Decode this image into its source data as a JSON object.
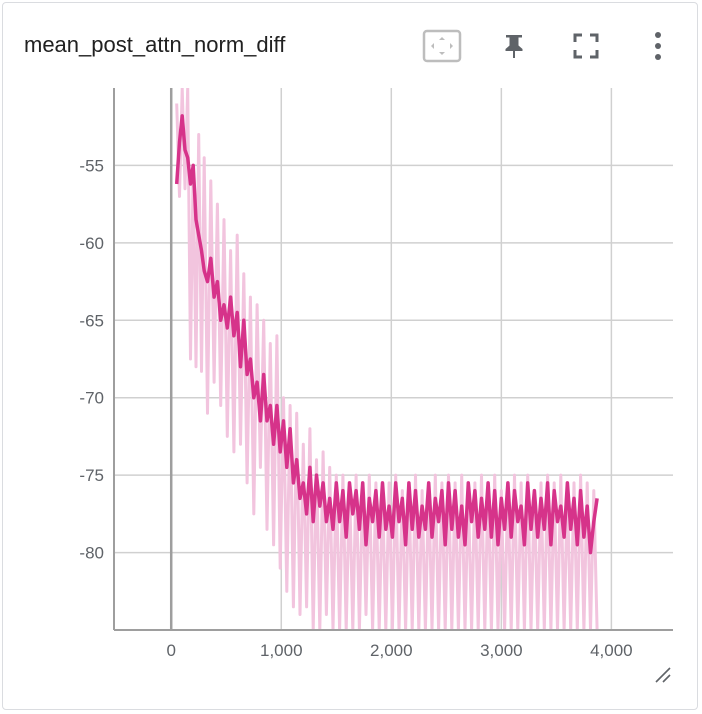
{
  "card": {
    "title": "mean_post_attn_norm_diff",
    "toolbar": [
      {
        "name": "fit-domain-button",
        "icon": "fit-to-data-icon"
      },
      {
        "name": "pin-button",
        "icon": "pin-icon"
      },
      {
        "name": "fullscreen-button",
        "icon": "fullscreen-icon"
      },
      {
        "name": "more-options-button",
        "icon": "more-vert-icon"
      }
    ]
  },
  "chart_data": {
    "type": "line",
    "title": "mean_post_attn_norm_diff",
    "xlabel": "",
    "ylabel": "",
    "xlim": [
      -520,
      4560
    ],
    "ylim": [
      -85,
      -50
    ],
    "x_ticks": [
      "0",
      "1,000",
      "2,000",
      "3,000",
      "4,000"
    ],
    "y_ticks": [
      "-55",
      "-60",
      "-65",
      "-70",
      "-75",
      "-80"
    ],
    "grid": true,
    "colors": {
      "raw": "#f2c4de",
      "smoothed": "#d6338a",
      "axis": "#9e9e9e",
      "grid": "#d0d0d0"
    },
    "series": [
      {
        "role": "raw",
        "x": [
          50,
          75,
          100,
          125,
          150,
          175,
          200,
          225,
          250,
          275,
          300,
          330,
          360,
          390,
          420,
          450,
          480,
          510,
          540,
          570,
          600,
          630,
          660,
          690,
          720,
          750,
          780,
          810,
          840,
          870,
          900,
          930,
          960,
          990,
          1020,
          1050,
          1080,
          1110,
          1140,
          1170,
          1200,
          1230,
          1260,
          1290,
          1320,
          1350,
          1380,
          1410,
          1440,
          1470,
          1500,
          1530,
          1560,
          1590,
          1620,
          1650,
          1680,
          1710,
          1740,
          1770,
          1800,
          1830,
          1860,
          1890,
          1920,
          1950,
          1980,
          2010,
          2040,
          2070,
          2100,
          2130,
          2160,
          2190,
          2220,
          2250,
          2280,
          2310,
          2340,
          2370,
          2400,
          2430,
          2460,
          2490,
          2520,
          2550,
          2580,
          2610,
          2640,
          2670,
          2700,
          2730,
          2760,
          2790,
          2820,
          2850,
          2880,
          2910,
          2940,
          2970,
          3000,
          3030,
          3060,
          3090,
          3120,
          3150,
          3180,
          3210,
          3240,
          3270,
          3300,
          3330,
          3360,
          3390,
          3420,
          3450,
          3480,
          3510,
          3540,
          3570,
          3600,
          3630,
          3660,
          3690,
          3720,
          3750,
          3780,
          3810,
          3840,
          3870
        ],
        "values": [
          -51.0,
          -57.0,
          -50.0,
          -56.5,
          -50.0,
          -67.5,
          -55.0,
          -68.0,
          -53.0,
          -68.3,
          -54.5,
          -71.0,
          -56.0,
          -69.0,
          -57.5,
          -70.5,
          -58.5,
          -72.5,
          -60.5,
          -73.5,
          -59.5,
          -73.0,
          -62.0,
          -75.5,
          -63.5,
          -77.5,
          -64.0,
          -74.5,
          -65.0,
          -78.5,
          -66.5,
          -79.5,
          -66.0,
          -81.0,
          -70.0,
          -82.5,
          -70.5,
          -83.5,
          -71.0,
          -84.0,
          -73.0,
          -83.5,
          -72.0,
          -85.0,
          -74.0,
          -85.0,
          -73.5,
          -84.0,
          -74.5,
          -85.0,
          -75.0,
          -85.0,
          -75.0,
          -85.0,
          -75.5,
          -85.0,
          -75.0,
          -85.0,
          -75.5,
          -84.0,
          -75.0,
          -85.0,
          -75.5,
          -85.0,
          -76.0,
          -85.0,
          -75.5,
          -85.0,
          -75.0,
          -85.0,
          -76.0,
          -85.0,
          -75.5,
          -85.0,
          -75.0,
          -85.0,
          -76.0,
          -85.0,
          -75.5,
          -85.0,
          -75.0,
          -85.0,
          -75.5,
          -85.0,
          -75.0,
          -85.0,
          -75.5,
          -85.0,
          -75.0,
          -85.0,
          -76.0,
          -85.0,
          -75.5,
          -85.0,
          -75.0,
          -85.0,
          -75.5,
          -85.0,
          -75.0,
          -85.0,
          -76.0,
          -85.0,
          -75.5,
          -85.0,
          -75.0,
          -85.0,
          -75.5,
          -85.0,
          -75.0,
          -85.0,
          -76.0,
          -85.0,
          -75.5,
          -85.0,
          -75.0,
          -85.0,
          -75.5,
          -85.0,
          -75.0,
          -85.0,
          -76.0,
          -85.0,
          -75.5,
          -85.0,
          -75.0,
          -85.0,
          -75.5,
          -85.0,
          -76.0,
          -85.0
        ]
      },
      {
        "role": "smoothed",
        "x": [
          50,
          75,
          100,
          125,
          150,
          175,
          200,
          225,
          250,
          275,
          300,
          330,
          360,
          390,
          420,
          450,
          480,
          510,
          540,
          570,
          600,
          630,
          660,
          690,
          720,
          750,
          780,
          810,
          840,
          870,
          900,
          930,
          960,
          990,
          1020,
          1050,
          1080,
          1110,
          1140,
          1170,
          1200,
          1230,
          1260,
          1290,
          1320,
          1350,
          1380,
          1410,
          1440,
          1470,
          1500,
          1530,
          1560,
          1590,
          1620,
          1650,
          1680,
          1710,
          1740,
          1770,
          1800,
          1830,
          1860,
          1890,
          1920,
          1950,
          1980,
          2010,
          2040,
          2070,
          2100,
          2130,
          2160,
          2190,
          2220,
          2250,
          2280,
          2310,
          2340,
          2370,
          2400,
          2430,
          2460,
          2490,
          2520,
          2550,
          2580,
          2610,
          2640,
          2670,
          2700,
          2730,
          2760,
          2790,
          2820,
          2850,
          2880,
          2910,
          2940,
          2970,
          3000,
          3030,
          3060,
          3090,
          3120,
          3150,
          3180,
          3210,
          3240,
          3270,
          3300,
          3330,
          3360,
          3390,
          3420,
          3450,
          3480,
          3510,
          3540,
          3570,
          3600,
          3630,
          3660,
          3690,
          3720,
          3750,
          3780,
          3810,
          3840,
          3870
        ],
        "values": [
          -56.2,
          -53.5,
          -51.8,
          -54.0,
          -54.5,
          -56.2,
          -55.0,
          -58.5,
          -59.5,
          -60.5,
          -61.8,
          -62.5,
          -61.0,
          -63.5,
          -62.5,
          -65.0,
          -64.0,
          -65.5,
          -63.5,
          -66.0,
          -64.5,
          -68.0,
          -65.0,
          -68.5,
          -67.5,
          -70.0,
          -69.0,
          -71.5,
          -68.5,
          -71.5,
          -70.5,
          -73.0,
          -70.5,
          -73.5,
          -71.5,
          -74.5,
          -72.0,
          -75.5,
          -74.0,
          -76.5,
          -75.5,
          -77.5,
          -74.5,
          -78.0,
          -75.0,
          -77.0,
          -75.5,
          -78.0,
          -76.5,
          -78.5,
          -75.5,
          -78.0,
          -76.0,
          -79.0,
          -75.5,
          -77.5,
          -76.0,
          -78.5,
          -75.5,
          -79.5,
          -76.5,
          -78.0,
          -76.0,
          -79.0,
          -75.5,
          -78.5,
          -77.0,
          -79.0,
          -75.5,
          -78.0,
          -76.5,
          -79.5,
          -75.5,
          -78.5,
          -76.0,
          -79.0,
          -77.0,
          -78.5,
          -75.5,
          -79.0,
          -76.5,
          -78.0,
          -76.0,
          -79.5,
          -75.5,
          -78.5,
          -76.0,
          -79.0,
          -77.0,
          -79.5,
          -75.5,
          -78.0,
          -76.0,
          -79.0,
          -76.5,
          -78.5,
          -75.5,
          -79.0,
          -76.0,
          -79.5,
          -76.5,
          -78.5,
          -75.5,
          -79.0,
          -76.0,
          -78.0,
          -77.0,
          -79.5,
          -75.5,
          -78.5,
          -76.0,
          -79.0,
          -76.5,
          -78.5,
          -75.5,
          -79.5,
          -76.0,
          -78.0,
          -77.0,
          -79.0,
          -75.5,
          -78.5,
          -76.5,
          -79.5,
          -76.0,
          -79.0,
          -77.0,
          -80.0,
          -78.0,
          -76.5
        ]
      }
    ]
  }
}
